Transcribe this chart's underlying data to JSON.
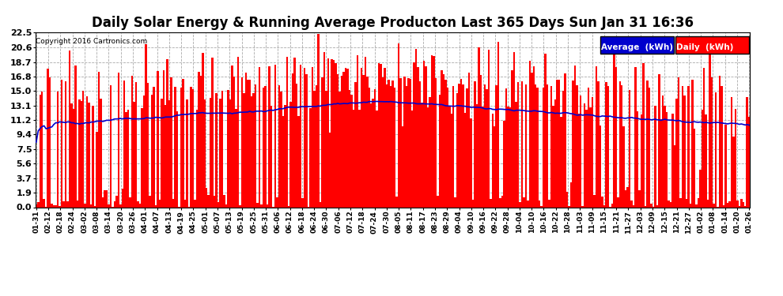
{
  "title": "Daily Solar Energy & Running Average Producton Last 365 Days Sun Jan 31 16:36",
  "copyright": "Copyright 2016 Cartronics.com",
  "yticks": [
    0.0,
    1.9,
    3.7,
    5.6,
    7.5,
    9.4,
    11.2,
    13.1,
    15.0,
    16.8,
    18.7,
    20.6,
    22.5
  ],
  "ymax": 22.5,
  "ymin": 0.0,
  "bar_color": "#ff0000",
  "avg_line_color": "#0000cd",
  "background_color": "#ffffff",
  "grid_color": "#aaaaaa",
  "legend_avg_bg": "#0000cd",
  "legend_daily_bg": "#ff0000",
  "legend_text_color": "#ffffff",
  "title_fontsize": 12,
  "xtick_labels": [
    "01-31",
    "02-12",
    "02-18",
    "02-24",
    "03-02",
    "03-08",
    "03-14",
    "03-20",
    "03-26",
    "04-01",
    "04-07",
    "04-13",
    "04-19",
    "04-25",
    "05-01",
    "05-07",
    "05-13",
    "05-19",
    "05-25",
    "05-31",
    "06-06",
    "06-12",
    "06-18",
    "06-24",
    "06-30",
    "07-06",
    "07-12",
    "07-18",
    "07-24",
    "07-30",
    "08-05",
    "08-11",
    "08-17",
    "08-23",
    "08-29",
    "09-04",
    "09-10",
    "09-16",
    "09-22",
    "09-28",
    "10-04",
    "10-10",
    "10-16",
    "10-22",
    "10-28",
    "11-03",
    "11-09",
    "11-15",
    "11-21",
    "11-27",
    "12-03",
    "12-09",
    "12-15",
    "12-21",
    "12-27",
    "01-02",
    "01-08",
    "01-14",
    "01-20",
    "01-26"
  ]
}
